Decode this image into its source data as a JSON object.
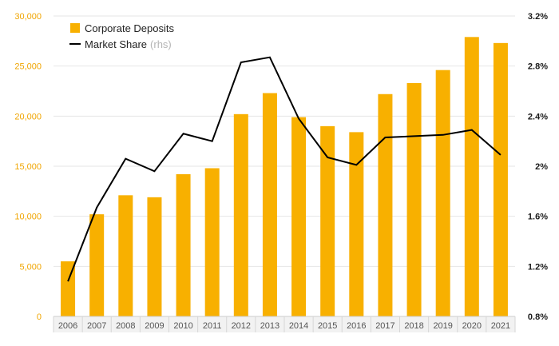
{
  "chart_data": {
    "type": "bar",
    "categories": [
      "2006",
      "2007",
      "2008",
      "2009",
      "2010",
      "2011",
      "2012",
      "2013",
      "2014",
      "2015",
      "2016",
      "2017",
      "2018",
      "2019",
      "2020",
      "2021"
    ],
    "series": [
      {
        "name": "Corporate Deposits",
        "type": "bar",
        "axis": "left",
        "color": "#f8b000",
        "values": [
          5500,
          10200,
          12100,
          11900,
          14200,
          14800,
          20200,
          22300,
          19900,
          19000,
          18400,
          22200,
          23300,
          24600,
          27900,
          27300
        ]
      },
      {
        "name": "Market Share",
        "type": "line",
        "axis": "right",
        "color": "#000000",
        "values": [
          1.08,
          1.67,
          2.06,
          1.96,
          2.26,
          2.2,
          2.83,
          2.87,
          2.38,
          2.07,
          2.01,
          2.23,
          2.24,
          2.25,
          2.29,
          2.09
        ]
      }
    ],
    "legend": {
      "position": "top-left",
      "bar_label": "Corporate Deposits",
      "line_label": "Market Share",
      "line_suffix": "(rhs)"
    },
    "y_left": {
      "lim": [
        0,
        30000
      ],
      "ticks": [
        0,
        5000,
        10000,
        15000,
        20000,
        25000,
        30000
      ],
      "tick_labels": [
        "0",
        "5,000",
        "10,000",
        "15,000",
        "20,000",
        "25,000",
        "30,000"
      ],
      "color": "#f0a500"
    },
    "y_right": {
      "lim": [
        0.8,
        3.2
      ],
      "ticks": [
        0.8,
        1.2,
        1.6,
        2.0,
        2.4,
        2.8,
        3.2
      ],
      "tick_labels": [
        "0.8%",
        "1.2%",
        "1.6%",
        "2%",
        "2.4%",
        "2.8%",
        "3.2%"
      ],
      "color": "#1a1a1a"
    },
    "grid": true,
    "title": "",
    "xlabel": "",
    "ylabel": ""
  }
}
